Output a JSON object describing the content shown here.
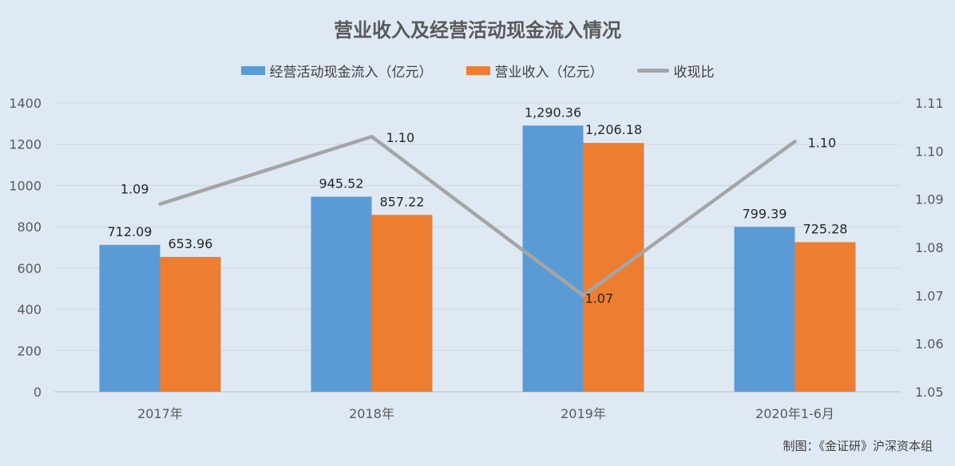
{
  "source_note": "制图：《金证研》沪深资本组",
  "chart_data": {
    "type": "bar",
    "title": "营业收入及经营活动现金流入情况",
    "categories": [
      "2017年",
      "2018年",
      "2019年",
      "2020年1-6月"
    ],
    "series": [
      {
        "name": "经营活动现金流入（亿元）",
        "kind": "bar",
        "axis": "left",
        "color": "#5b9bd5",
        "values": [
          712.09,
          945.52,
          1290.36,
          799.39
        ],
        "labels": [
          "712.09",
          "945.52",
          "1,290.36",
          "799.39"
        ]
      },
      {
        "name": "营业收入（亿元）",
        "kind": "bar",
        "axis": "left",
        "color": "#ed7d31",
        "values": [
          653.96,
          857.22,
          1206.18,
          725.28
        ],
        "labels": [
          "653.96",
          "857.22",
          "1,206.18",
          "725.28"
        ]
      },
      {
        "name": "收现比",
        "kind": "line",
        "axis": "right",
        "color": "#a5a5a5",
        "values": [
          1.089,
          1.103,
          1.07,
          1.102
        ],
        "labels": [
          "1.09",
          "1.10",
          "1.07",
          "1.10"
        ]
      }
    ],
    "y_left": {
      "ylim": [
        0,
        1400
      ],
      "ticks": [
        0,
        200,
        400,
        600,
        800,
        1000,
        1200,
        1400
      ],
      "tick_labels": [
        "0",
        "200",
        "400",
        "600",
        "800",
        "1000",
        "1200",
        "1400"
      ]
    },
    "y_right": {
      "ylim": [
        1.05,
        1.11
      ],
      "ticks": [
        1.05,
        1.06,
        1.07,
        1.08,
        1.09,
        1.1,
        1.11
      ],
      "tick_labels": [
        "1.05",
        "1.06",
        "1.07",
        "1.08",
        "1.09",
        "1.10",
        "1.11"
      ]
    },
    "grid": true,
    "legend_position": "top"
  }
}
